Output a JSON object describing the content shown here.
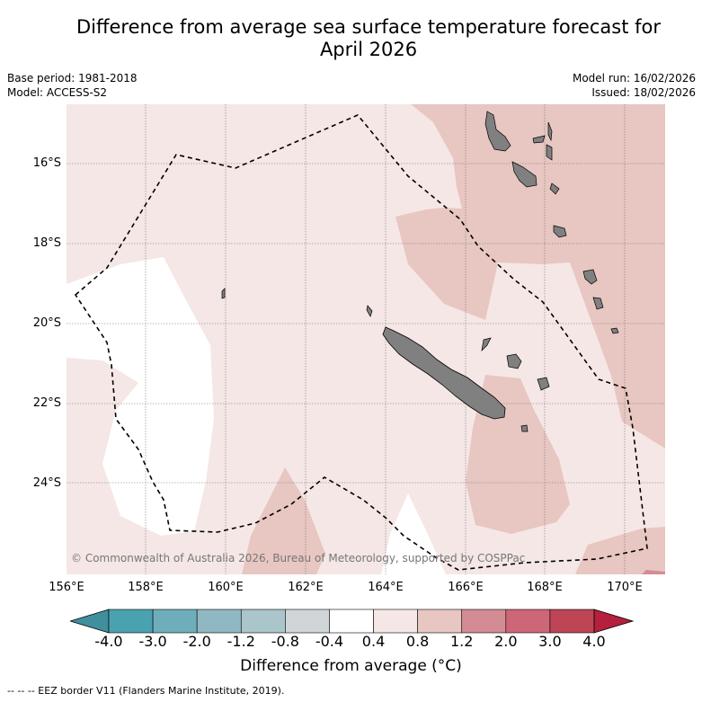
{
  "title": "Difference from average sea surface temperature forecast for April 2026",
  "title_lines": [
    "Difference from average sea surface temperature forecast for",
    "April 2026"
  ],
  "meta": {
    "base_period": "Base period: 1981-2018",
    "model": "Model: ACCESS-S2",
    "model_run": "Model run: 16/02/2026",
    "issued": "Issued: 18/02/2026"
  },
  "map": {
    "lat_labels": [
      "16°S",
      "18°S",
      "20°S",
      "22°S",
      "24°S"
    ],
    "lon_labels": [
      "156°E",
      "158°E",
      "160°E",
      "162°E",
      "164°E",
      "166°E",
      "168°E",
      "170°E"
    ],
    "lon_range": [
      156,
      171
    ],
    "lat_range": [
      -26.3,
      -14.5
    ],
    "copyright": "© Commonwealth of Australia 2026, Bureau of Meteorology, supported by COSPPac",
    "colors": {
      "neutral": "#ffffff",
      "anomaly_0_4_0_8": "#f5e7e5",
      "anomaly_0_8_1_2": "#e8c6c1",
      "anomaly_1_2_2_0": "#d48c94",
      "land": "#808080"
    }
  },
  "colorbar": {
    "ticks": [
      "-4.0",
      "-3.0",
      "-2.0",
      "-1.2",
      "-0.8",
      "-0.4",
      "0.4",
      "0.8",
      "1.2",
      "2.0",
      "3.0",
      "4.0"
    ],
    "colors": [
      "#4aa2b0",
      "#6eaebb",
      "#8fb8c3",
      "#aac6cb",
      "#d0d6d8",
      "#ffffff",
      "#f5e7e5",
      "#e8c6c1",
      "#d48c94",
      "#cd6676",
      "#bd4556"
    ],
    "under_color": "#3f8f9d",
    "over_color": "#b4203e",
    "label": "Difference from average (°C)"
  },
  "footnote": "--  --  -- EEZ border V11 (Flanders Marine Institute, 2019)."
}
